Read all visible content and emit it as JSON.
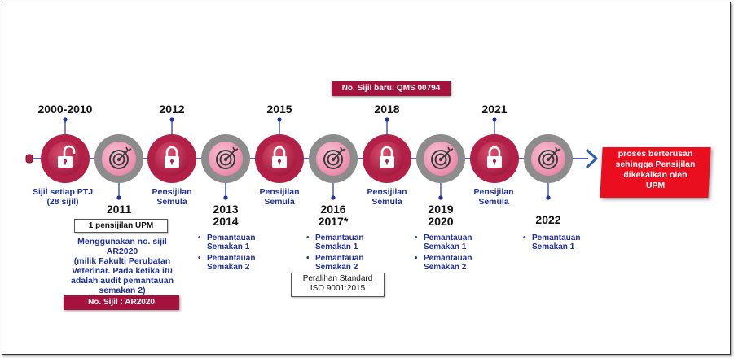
{
  "nodes": [
    {
      "year": "2000-2010",
      "kind": "lock",
      "label": [
        "Sijil setiap PTJ",
        "(28 sijil)"
      ]
    },
    {
      "year": "2011",
      "kind": "target"
    },
    {
      "year": "2012",
      "kind": "lock",
      "label": [
        "Pensijilan",
        "Semula"
      ]
    },
    {
      "year": "2013\n2014",
      "kind": "target"
    },
    {
      "year": "2015",
      "kind": "lock",
      "label": [
        "Pensijilan",
        "Semula"
      ]
    },
    {
      "year": "2016\n2017*",
      "kind": "target"
    },
    {
      "year": "2018",
      "kind": "lock",
      "label": [
        "Pensijilan",
        "Semula"
      ]
    },
    {
      "year": "2019\n2020",
      "kind": "target"
    },
    {
      "year": "2021",
      "kind": "lock",
      "label": [
        "Pensijilan",
        "Semula"
      ]
    },
    {
      "year": "2022",
      "kind": "target"
    }
  ],
  "bullets": {
    "n4": [
      "Pemantauan",
      "Semakan 1",
      "Pemantauan",
      "Semakan 2"
    ],
    "n6": [
      "Pemantauan",
      "Semakan 1",
      "Pemantauan",
      "Semakan 2"
    ],
    "n8": [
      "Pemantauan",
      "Semakan 1",
      "Pemantauan",
      "Semakan 2"
    ],
    "n10": [
      "Pemantauan",
      "Semakan 1"
    ]
  },
  "boxes": {
    "upm_cert": "1 pensijilan UPM",
    "ar2020_note": [
      "Menggunakan no. sijil",
      "AR2020",
      "(milik Fakulti Perubatan",
      "Veterinar. Pada ketika itu",
      "adalah audit pemantauan",
      "semakan 2)"
    ],
    "ar2020_badge": "No. Sijil : AR2020",
    "transition": [
      "Peralihan Standard",
      "ISO 9001:2015"
    ],
    "new_cert": "No. Sijil baru: QMS 00794"
  },
  "goal": [
    "proses berterusan",
    "sehingga Pensijilan",
    "dikekalkan oleh",
    "UPM"
  ],
  "colors": {
    "lock_ring": "#b21f47",
    "lock_core": "#c93a5e",
    "target_ring": "#8c8c8c",
    "target_core": "#f29ab9",
    "label_blue": "#1f2f9e",
    "goal_red": "#ea0f1f",
    "badge_red": "#a5123e"
  },
  "icons": [
    "unlocked-padlock-icon",
    "padlock-icon",
    "target-icon",
    "chevron-right-icon"
  ]
}
